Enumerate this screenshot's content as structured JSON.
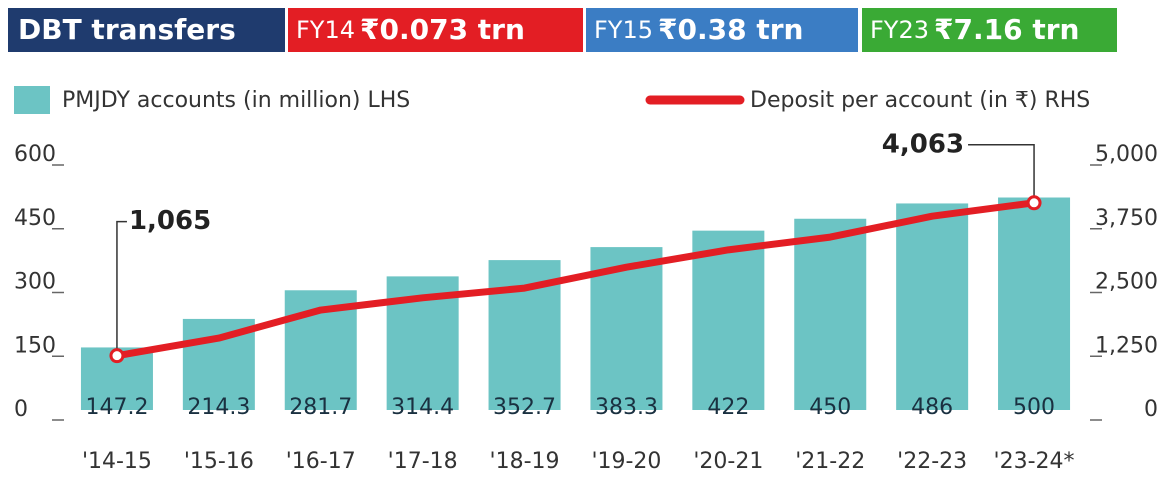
{
  "header": {
    "title": "DBT transfers",
    "title_color": "#1f3b6e",
    "items": [
      {
        "label": "FY14",
        "value": "₹0.073 trn",
        "color": "#e31e24"
      },
      {
        "label": "FY15",
        "value": "₹0.38 trn",
        "color": "#3b7dc4"
      },
      {
        "label": "FY23",
        "value": "₹7.16 trn",
        "color": "#3aaa35"
      }
    ]
  },
  "chart_data": {
    "type": "bar",
    "categories": [
      "'14-15",
      "'15-16",
      "'16-17",
      "'17-18",
      "'18-19",
      "'19-20",
      "'20-21",
      "'21-22",
      "'22-23",
      "'23-24*"
    ],
    "series": [
      {
        "name": "PMJDY accounts (in million) LHS",
        "type": "bar",
        "color": "#6cc4c4",
        "values": [
          147.2,
          214.3,
          281.7,
          314.4,
          352.7,
          383.3,
          422,
          450,
          486,
          500
        ]
      },
      {
        "name": "Deposit per account (in ₹) RHS",
        "type": "line",
        "axis": "y2",
        "color": "#e31e24",
        "values": [
          1065,
          1410,
          1960,
          2200,
          2390,
          2800,
          3140,
          3390,
          3800,
          4063
        ],
        "value_labels": [
          "1,065",
          null,
          null,
          null,
          null,
          null,
          null,
          null,
          null,
          "4,063"
        ]
      }
    ],
    "ylim": [
      0,
      600
    ],
    "yticks": [
      0,
      150,
      300,
      450,
      600
    ],
    "y2lim": [
      0,
      5000
    ],
    "y2ticks": [
      0,
      {
        "value": 1250,
        "label": "1,250"
      },
      {
        "value": 2500,
        "label": "2,500"
      },
      {
        "value": 3750,
        "label": "3,750"
      },
      {
        "value": 5000,
        "label": "5,000"
      }
    ]
  }
}
